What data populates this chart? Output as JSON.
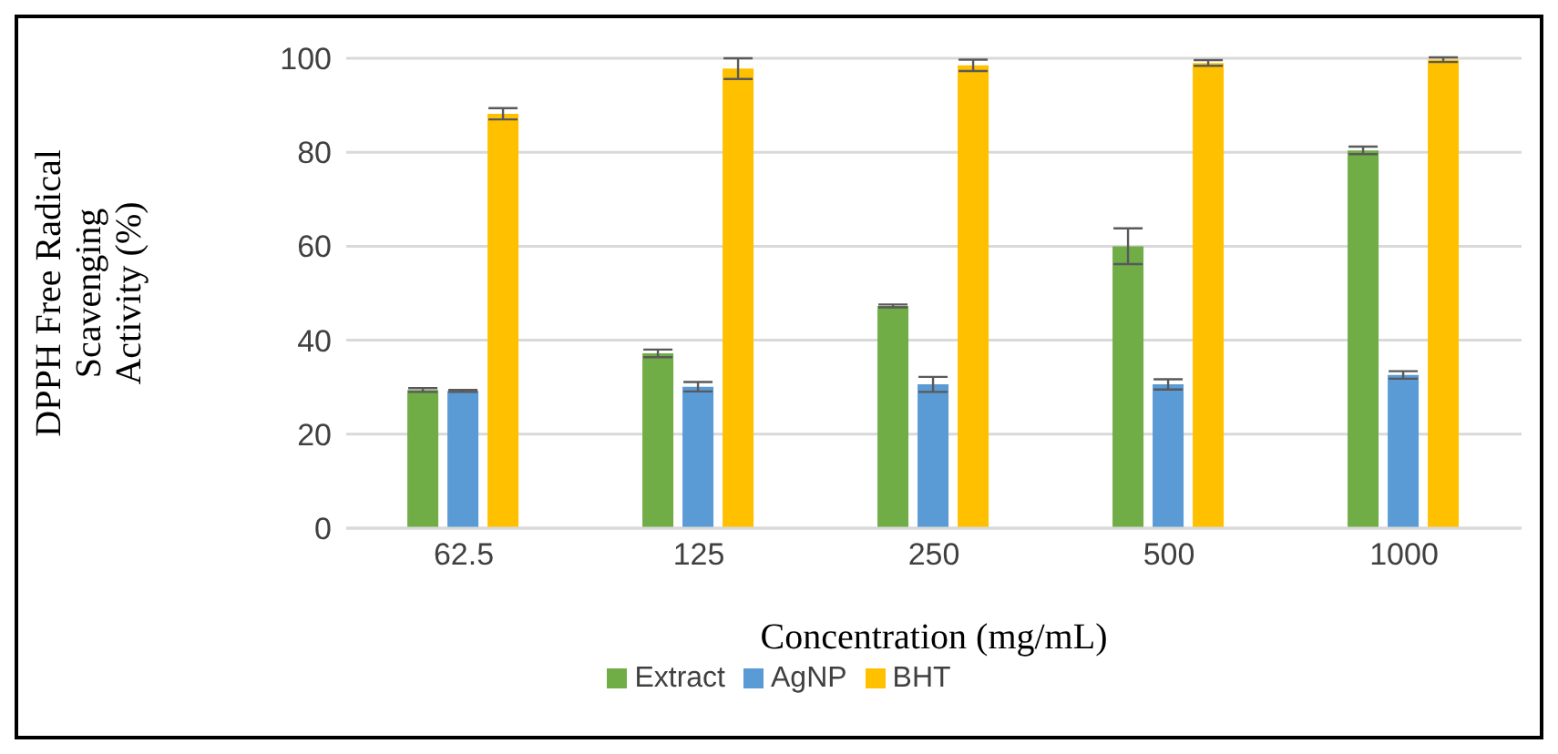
{
  "chart_data": {
    "type": "bar",
    "xlabel": "Concentration (mg/mL)",
    "ylabel": "DPPH Free Radical Scavenging Activity (%)",
    "categories": [
      "62.5",
      "125",
      "250",
      "500",
      "1000"
    ],
    "series": [
      {
        "name": "Extract",
        "color": "#70ad47",
        "values": [
          29.4,
          37.2,
          47.3,
          60.0,
          80.4
        ],
        "errors": [
          0.4,
          0.8,
          0.3,
          3.8,
          0.8
        ]
      },
      {
        "name": "AgNP",
        "color": "#5b9bd5",
        "values": [
          29.2,
          30.1,
          30.6,
          30.6,
          32.6
        ],
        "errors": [
          0.2,
          1.0,
          1.6,
          1.1,
          0.8
        ]
      },
      {
        "name": "BHT",
        "color": "#ffc000",
        "values": [
          88.2,
          97.8,
          98.5,
          99.0,
          99.7
        ],
        "errors": [
          1.2,
          2.2,
          1.2,
          0.6,
          0.5
        ]
      }
    ],
    "ylim": [
      0,
      100
    ],
    "yticks": [
      0,
      20,
      40,
      60,
      80,
      100
    ],
    "grid": "y",
    "legend": "bottom"
  }
}
